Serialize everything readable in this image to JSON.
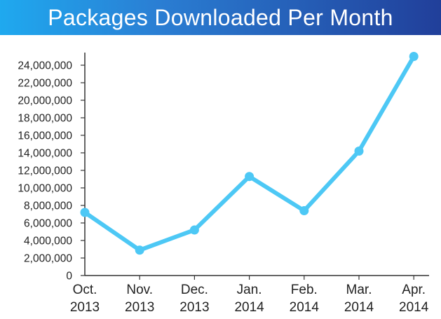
{
  "chart_data": {
    "type": "line",
    "title": "Packages Downloaded Per Month",
    "xlabel": "",
    "ylabel": "",
    "categories": [
      [
        "Oct.",
        "2013"
      ],
      [
        "Nov.",
        "2013"
      ],
      [
        "Dec.",
        "2013"
      ],
      [
        "Jan.",
        "2014"
      ],
      [
        "Feb.",
        "2014"
      ],
      [
        "Mar.",
        "2014"
      ],
      [
        "Apr.",
        "2014"
      ]
    ],
    "values": [
      7200000,
      2900000,
      5200000,
      11300000,
      7400000,
      14200000,
      25000000
    ],
    "yticks": [
      0,
      2000000,
      4000000,
      6000000,
      8000000,
      10000000,
      12000000,
      14000000,
      16000000,
      18000000,
      20000000,
      22000000,
      24000000
    ],
    "ytick_labels": [
      "0",
      "2,000,000",
      "4,000,000",
      "6,000,000",
      "8,000,000",
      "10,000,000",
      "12,000,000",
      "14,000,000",
      "16,000,000",
      "18,000,000",
      "20,000,000",
      "22,000,000",
      "24,000,000"
    ],
    "ylim": [
      0,
      25000000
    ],
    "grid": false,
    "legend": "none",
    "colors": {
      "line": "#4dc8f5",
      "banner_left": "#1fa9ef",
      "banner_right": "#213f9a",
      "axis": "#333333"
    }
  }
}
